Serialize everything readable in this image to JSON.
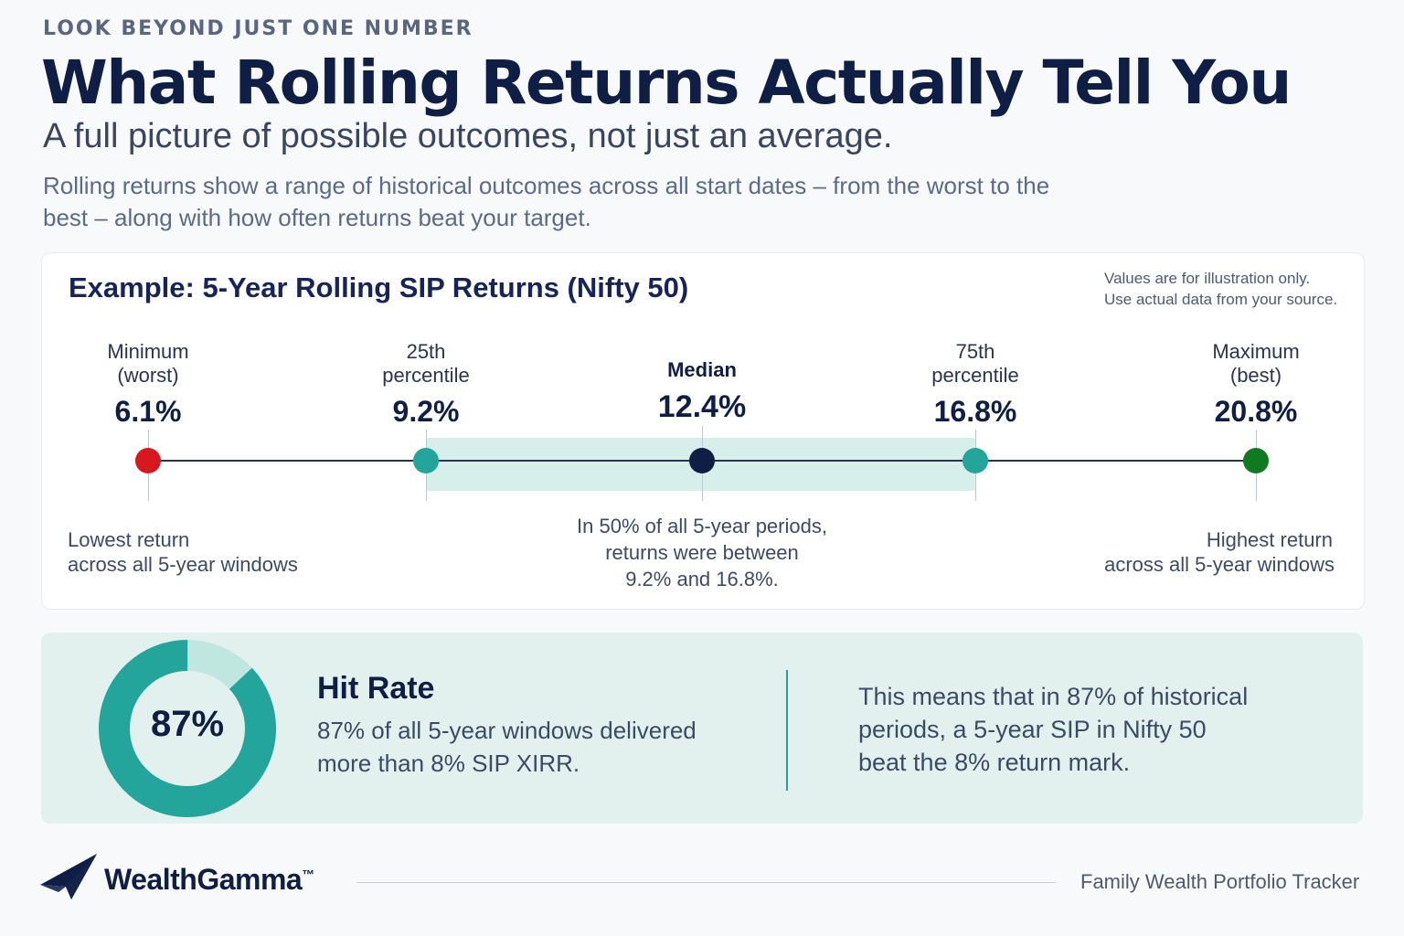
{
  "eyebrow": "LOOK BEYOND JUST ONE NUMBER",
  "title": "What Rolling Returns Actually Tell You",
  "subtitle": "A full picture of possible outcomes, not just an average.",
  "description": "Rolling returns show a range of historical outcomes across all start dates – from the worst to the best – along with how often returns beat your target.",
  "example": {
    "title": "Example: 5-Year Rolling SIP Returns (Nifty 50)",
    "note_line1": "Values are for illustration only.",
    "note_line2": "Use actual data from your source."
  },
  "chart_data": {
    "type": "range",
    "title": "Example: 5-Year Rolling SIP Returns (Nifty 50)",
    "unit": "%",
    "points": [
      {
        "label_line1": "Minimum",
        "label_line2": "(worst)",
        "value": 6.1,
        "display": "6.1%",
        "color": "#d7191f"
      },
      {
        "label_line1": "25th",
        "label_line2": "percentile",
        "value": 9.2,
        "display": "9.2%",
        "color": "#23a59b"
      },
      {
        "label_line1": "Median",
        "label_line2": "",
        "value": 12.4,
        "display": "12.4%",
        "color": "#0f1e45"
      },
      {
        "label_line1": "75th",
        "label_line2": "percentile",
        "value": 16.8,
        "display": "16.8%",
        "color": "#23a59b"
      },
      {
        "label_line1": "Maximum",
        "label_line2": "(best)",
        "value": 20.8,
        "display": "20.8%",
        "color": "#0f7a1f"
      }
    ],
    "iqr_range": [
      9.2,
      16.8
    ],
    "iqr_color": "#d7efea",
    "hit_rate": 87,
    "hit_rate_display": "87%",
    "target_return": 8
  },
  "captions": {
    "left_line1": "Lowest return",
    "left_line2": "across all 5-year windows",
    "center_line1": "In 50% of all 5-year periods,",
    "center_line2": "returns were between",
    "center_line3": "9.2% and 16.8%.",
    "right_line1": "Highest return",
    "right_line2": "across all 5-year windows"
  },
  "hit_rate": {
    "title": "Hit Rate",
    "value_label": "87%",
    "text_line1": "87% of all 5-year windows delivered",
    "text_line2": "more than 8% SIP XIRR.",
    "explain_line1": "This means that in 87% of historical",
    "explain_line2": "periods, a 5-year SIP in Nifty 50",
    "explain_line3": "beat the 8% return mark."
  },
  "footer": {
    "brand": "WealthGamma",
    "trademark": "™",
    "tagline": "Family Wealth Portfolio Tracker"
  },
  "colors": {
    "navy": "#0f1e45",
    "teal": "#23a59b",
    "teal_light": "#bfe6df",
    "panel": "#e3f1ee"
  }
}
